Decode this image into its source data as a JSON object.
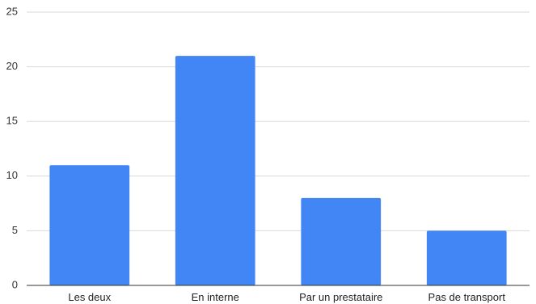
{
  "chart_data": {
    "type": "bar",
    "title": "",
    "xlabel": "",
    "ylabel": "",
    "categories": [
      "Les deux",
      "En interne",
      "Par un prestataire",
      "Pas de transport"
    ],
    "values": [
      11,
      21,
      8,
      5
    ],
    "ylim": [
      0,
      25
    ],
    "yticks": [
      "0",
      "5",
      "10",
      "15",
      "20",
      "25"
    ],
    "grid": true,
    "legend": "none",
    "bar_color": "#4285f4"
  }
}
